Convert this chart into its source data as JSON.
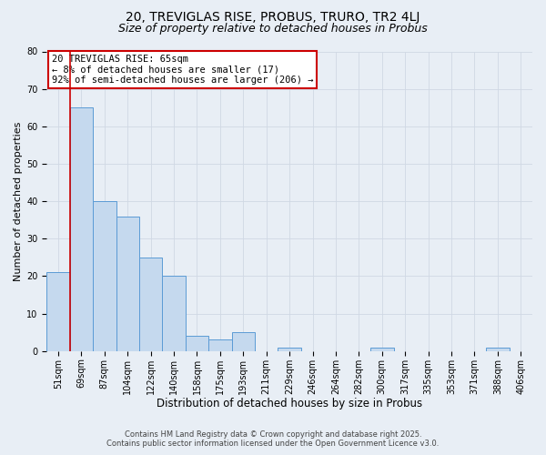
{
  "title": "20, TREVIGLAS RISE, PROBUS, TRURO, TR2 4LJ",
  "subtitle": "Size of property relative to detached houses in Probus",
  "xlabel": "Distribution of detached houses by size in Probus",
  "ylabel": "Number of detached properties",
  "categories": [
    "51sqm",
    "69sqm",
    "87sqm",
    "104sqm",
    "122sqm",
    "140sqm",
    "158sqm",
    "175sqm",
    "193sqm",
    "211sqm",
    "229sqm",
    "246sqm",
    "264sqm",
    "282sqm",
    "300sqm",
    "317sqm",
    "335sqm",
    "353sqm",
    "371sqm",
    "388sqm",
    "406sqm"
  ],
  "values": [
    21,
    65,
    40,
    36,
    25,
    20,
    4,
    3,
    5,
    0,
    1,
    0,
    0,
    0,
    1,
    0,
    0,
    0,
    0,
    1,
    0
  ],
  "bar_color": "#c5d9ee",
  "bar_edge_color": "#5b9bd5",
  "marker_line_color": "#cc0000",
  "annotation_text": "20 TREVIGLAS RISE: 65sqm\n← 8% of detached houses are smaller (17)\n92% of semi-detached houses are larger (206) →",
  "annotation_box_color": "#ffffff",
  "annotation_box_edge_color": "#cc0000",
  "ylim": [
    0,
    80
  ],
  "yticks": [
    0,
    10,
    20,
    30,
    40,
    50,
    60,
    70,
    80
  ],
  "grid_color": "#d0d8e4",
  "background_color": "#e8eef5",
  "footer_line1": "Contains HM Land Registry data © Crown copyright and database right 2025.",
  "footer_line2": "Contains public sector information licensed under the Open Government Licence v3.0.",
  "title_fontsize": 10,
  "subtitle_fontsize": 9,
  "xlabel_fontsize": 8.5,
  "ylabel_fontsize": 8,
  "tick_fontsize": 7,
  "annot_fontsize": 7.5,
  "footer_fontsize": 6
}
